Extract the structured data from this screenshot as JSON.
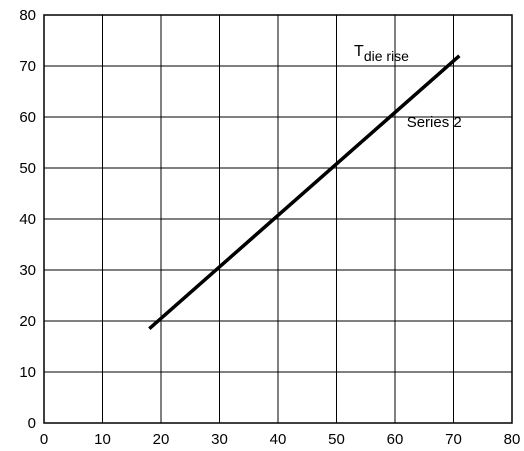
{
  "chart_data": {
    "type": "line",
    "title": "",
    "xlabel": "",
    "ylabel": "",
    "xlim": [
      0,
      80
    ],
    "ylim": [
      0,
      80
    ],
    "xticks": [
      0,
      10,
      20,
      30,
      40,
      50,
      60,
      70,
      80
    ],
    "yticks": [
      0,
      10,
      20,
      30,
      40,
      50,
      60,
      70,
      80
    ],
    "grid": true,
    "series": [
      {
        "name": "",
        "color": "#000000",
        "x": [
          18,
          71
        ],
        "y": [
          18.5,
          72
        ]
      }
    ],
    "annotations": [
      {
        "text": "T",
        "subscript": "die rise",
        "x": 53,
        "y": 72
      },
      {
        "text": "Series 2",
        "x": 62,
        "y": 58
      }
    ]
  }
}
